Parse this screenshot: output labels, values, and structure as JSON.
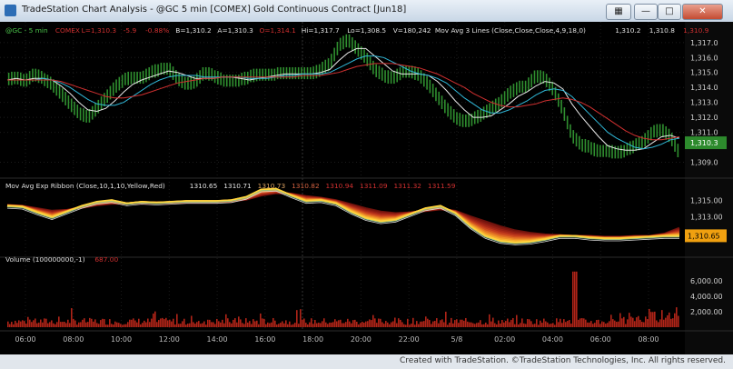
{
  "window": {
    "title": "TradeStation Chart Analysis - @GC 5 min [COMEX] Gold Continuous Contract [Jun18]",
    "close_label": "✕"
  },
  "footer": {
    "credit": "Created with TradeStation. ©TradeStation Technologies, Inc. All rights reserved."
  },
  "legends": {
    "price": [
      {
        "text": "@GC - 5 min",
        "color": "#4cc84c"
      },
      {
        "text": "COMEX",
        "color": "#d03030"
      },
      {
        "text": "L=1,310.3",
        "color": "#d03030"
      },
      {
        "text": "-5.9",
        "color": "#d03030"
      },
      {
        "text": "-0.88%",
        "color": "#d03030"
      },
      {
        "text": "B=1,310.2",
        "color": "#e0e0e0"
      },
      {
        "text": "A=1,310.3",
        "color": "#e0e0e0"
      },
      {
        "text": "O=1,314.1",
        "color": "#d03030"
      },
      {
        "text": "Hi=1,317.7",
        "color": "#e0e0e0"
      },
      {
        "text": "Lo=1,308.5",
        "color": "#e0e0e0"
      },
      {
        "text": "V=180,242",
        "color": "#e0e0e0"
      },
      {
        "text": "Mov Avg 3 Lines (Close,Close,Close,4,9,18,0)",
        "color": "#e0e0e0"
      },
      {
        "text": "1,310.2",
        "color": "#e0e0e0"
      },
      {
        "text": "1,310.8",
        "color": "#e0e0e0"
      },
      {
        "text": "1,310.9",
        "color": "#d03030"
      }
    ],
    "ribbon": [
      {
        "text": "Mov Avg Exp Ribbon (Close,10,1,10,Yellow,Red)",
        "color": "#e0e0e0"
      },
      {
        "text": "1310.65",
        "color": "#e0e0e0"
      },
      {
        "text": "1310.71",
        "color": "#e0e0e0"
      },
      {
        "text": "1310.73",
        "color": "#d8a060"
      },
      {
        "text": "1310.82",
        "color": "#d06040"
      },
      {
        "text": "1310.94",
        "color": "#d03030"
      },
      {
        "text": "1311.09",
        "color": "#d03030"
      },
      {
        "text": "1311.32",
        "color": "#d03030"
      },
      {
        "text": "1311.59",
        "color": "#d03030"
      }
    ],
    "volume": [
      {
        "text": "Volume (100000000,-1)",
        "color": "#e0e0e0"
      },
      {
        "text": "687.00",
        "color": "#d03030"
      }
    ]
  },
  "chart_data": {
    "type": "line",
    "symbol": "@GC",
    "interval": "5 min",
    "x_tick_labels": [
      "06:00",
      "08:00",
      "10:00",
      "12:00",
      "14:00",
      "16:00",
      "18:00",
      "20:00",
      "22:00",
      "5/8",
      "02:00",
      "04:00",
      "06:00",
      "08:00"
    ],
    "panels": [
      {
        "name": "price",
        "y_tick_labels": [
          "1,317.0",
          "1,316.0",
          "1,315.0",
          "1,314.0",
          "1,313.0",
          "1,312.0",
          "1,311.0",
          "1,309.0"
        ],
        "ylim": [
          1308.3,
          1317.9
        ],
        "last_price_label": "1,310.3",
        "x": [
          0,
          6,
          12,
          18,
          24,
          30,
          36,
          42,
          48,
          54,
          60,
          66,
          72,
          78,
          84,
          90,
          96,
          102,
          108,
          114,
          120,
          126,
          132,
          138,
          144,
          150,
          156,
          162,
          168,
          174,
          180,
          186,
          192,
          198,
          204,
          210,
          216,
          222,
          228,
          234,
          240,
          246,
          252,
          258,
          264,
          270,
          276,
          282,
          288,
          294,
          300,
          306,
          312,
          318,
          324,
          330,
          336,
          342,
          348,
          354,
          360,
          366,
          372,
          378,
          384,
          390,
          396,
          402,
          408,
          414,
          420,
          426,
          432,
          438,
          444,
          450
        ],
        "series": [
          {
            "name": "Close",
            "color": "#3fae3f",
            "values": [
              1314.5,
              1314.7,
              1314.4,
              1314.9,
              1314.6,
              1314.2,
              1313.6,
              1312.9,
              1312.3,
              1312.0,
              1312.6,
              1313.3,
              1314.0,
              1314.5,
              1314.7,
              1314.6,
              1315.0,
              1315.2,
              1315.3,
              1314.6,
              1314.2,
              1314.4,
              1315.0,
              1314.8,
              1314.5,
              1314.4,
              1314.5,
              1314.7,
              1314.9,
              1314.8,
              1314.9,
              1315.0,
              1314.9,
              1315.0,
              1314.9,
              1315.2,
              1315.6,
              1316.8,
              1317.2,
              1316.6,
              1316.0,
              1315.2,
              1314.8,
              1314.6,
              1315.0,
              1315.1,
              1314.8,
              1314.2,
              1313.4,
              1312.6,
              1312.0,
              1311.7,
              1311.9,
              1312.2,
              1312.6,
              1313.0,
              1313.6,
              1314.0,
              1314.1,
              1314.8,
              1314.6,
              1313.8,
              1312.5,
              1310.8,
              1310.2,
              1310.0,
              1309.7,
              1309.8,
              1309.6,
              1309.8,
              1310.1,
              1310.4,
              1311.0,
              1311.2,
              1310.7,
              1309.6
            ]
          },
          {
            "name": "MA 4",
            "color": "#e8e8e8",
            "values": [
              1314.5,
              1314.6,
              1314.5,
              1314.6,
              1314.6,
              1314.5,
              1314.1,
              1313.6,
              1313.0,
              1312.5,
              1312.4,
              1312.6,
              1313.1,
              1313.7,
              1314.2,
              1314.5,
              1314.7,
              1314.9,
              1315.1,
              1315.0,
              1314.8,
              1314.6,
              1314.6,
              1314.6,
              1314.7,
              1314.7,
              1314.6,
              1314.5,
              1314.6,
              1314.7,
              1314.8,
              1314.9,
              1314.9,
              1314.9,
              1314.9,
              1315.0,
              1315.2,
              1315.8,
              1316.3,
              1316.6,
              1316.6,
              1316.1,
              1315.6,
              1315.1,
              1314.9,
              1314.9,
              1314.9,
              1314.8,
              1314.4,
              1313.8,
              1313.1,
              1312.5,
              1312.0,
              1312.0,
              1312.1,
              1312.5,
              1312.9,
              1313.4,
              1313.7,
              1314.1,
              1314.4,
              1314.3,
              1313.9,
              1312.9,
              1312.1,
              1311.4,
              1310.7,
              1310.1,
              1309.9,
              1309.8,
              1309.8,
              1309.9,
              1310.3,
              1310.7,
              1310.8,
              1310.6
            ]
          },
          {
            "name": "MA 9",
            "color": "#30b8d8",
            "values": [
              1314.5,
              1314.5,
              1314.5,
              1314.5,
              1314.6,
              1314.5,
              1314.3,
              1314.0,
              1313.6,
              1313.2,
              1312.9,
              1312.8,
              1312.8,
              1313.0,
              1313.4,
              1313.8,
              1314.2,
              1314.5,
              1314.7,
              1314.8,
              1314.8,
              1314.8,
              1314.7,
              1314.7,
              1314.7,
              1314.7,
              1314.7,
              1314.6,
              1314.6,
              1314.6,
              1314.7,
              1314.8,
              1314.8,
              1314.9,
              1314.9,
              1314.9,
              1315.0,
              1315.3,
              1315.6,
              1315.9,
              1316.1,
              1316.1,
              1316.0,
              1315.7,
              1315.4,
              1315.1,
              1314.9,
              1314.8,
              1314.6,
              1314.3,
              1313.8,
              1313.3,
              1312.9,
              1312.5,
              1312.3,
              1312.3,
              1312.5,
              1312.8,
              1313.1,
              1313.5,
              1313.8,
              1313.9,
              1313.8,
              1313.4,
              1312.8,
              1312.2,
              1311.6,
              1311.0,
              1310.6,
              1310.3,
              1310.0,
              1309.9,
              1310.0,
              1310.2,
              1310.5,
              1310.6
            ]
          },
          {
            "name": "MA 18",
            "color": "#d03030",
            "values": [
              1314.5,
              1314.5,
              1314.5,
              1314.5,
              1314.5,
              1314.5,
              1314.4,
              1314.2,
              1314.0,
              1313.8,
              1313.6,
              1313.4,
              1313.3,
              1313.3,
              1313.4,
              1313.5,
              1313.7,
              1313.9,
              1314.1,
              1314.3,
              1314.4,
              1314.5,
              1314.6,
              1314.6,
              1314.7,
              1314.7,
              1314.7,
              1314.7,
              1314.7,
              1314.7,
              1314.7,
              1314.7,
              1314.7,
              1314.8,
              1314.8,
              1314.8,
              1314.9,
              1315.0,
              1315.2,
              1315.4,
              1315.5,
              1315.6,
              1315.6,
              1315.6,
              1315.5,
              1315.4,
              1315.3,
              1315.1,
              1314.9,
              1314.6,
              1314.3,
              1314.0,
              1313.6,
              1313.3,
              1313.0,
              1312.8,
              1312.7,
              1312.7,
              1312.8,
              1312.9,
              1313.1,
              1313.2,
              1313.3,
              1313.2,
              1313.0,
              1312.7,
              1312.3,
              1311.9,
              1311.5,
              1311.1,
              1310.8,
              1310.6,
              1310.5,
              1310.5,
              1310.6,
              1310.7
            ]
          }
        ]
      },
      {
        "name": "ribbon",
        "y_tick_labels": [
          "1,315.00",
          "1,313.00"
        ],
        "ylim": [
          1308.8,
          1316.6
        ],
        "last_value_label": "1,310.65",
        "x": [
          0,
          10,
          20,
          30,
          40,
          50,
          60,
          70,
          80,
          90,
          100,
          110,
          120,
          130,
          140,
          150,
          160,
          170,
          180,
          190,
          200,
          210,
          220,
          230,
          240,
          250,
          260,
          270,
          280,
          290,
          300,
          310,
          320,
          330,
          340,
          350,
          360,
          370,
          380,
          390,
          400,
          410,
          420,
          430,
          440,
          450
        ],
        "fast_ema": [
          1314.3,
          1314.2,
          1313.5,
          1312.9,
          1313.6,
          1314.3,
          1314.8,
          1315.0,
          1314.6,
          1314.8,
          1314.7,
          1314.8,
          1314.9,
          1314.9,
          1314.9,
          1315.0,
          1315.4,
          1316.3,
          1316.4,
          1315.6,
          1314.9,
          1315.0,
          1314.6,
          1313.6,
          1312.8,
          1312.4,
          1312.6,
          1313.3,
          1314.0,
          1314.3,
          1313.4,
          1311.8,
          1310.6,
          1310.0,
          1309.8,
          1309.9,
          1310.2,
          1310.6,
          1310.6,
          1310.4,
          1310.3,
          1310.3,
          1310.4,
          1310.5,
          1310.6,
          1310.6
        ],
        "slow_ema": [
          1314.4,
          1314.3,
          1314.0,
          1313.7,
          1313.8,
          1314.1,
          1314.4,
          1314.6,
          1314.6,
          1314.7,
          1314.7,
          1314.7,
          1314.8,
          1314.8,
          1314.8,
          1314.9,
          1315.1,
          1315.6,
          1315.9,
          1315.8,
          1315.5,
          1315.3,
          1315.0,
          1314.5,
          1314.0,
          1313.6,
          1313.4,
          1313.5,
          1313.7,
          1313.9,
          1313.7,
          1313.0,
          1312.4,
          1311.8,
          1311.3,
          1311.0,
          1310.8,
          1310.7,
          1310.6,
          1310.6,
          1310.5,
          1310.5,
          1310.6,
          1310.6,
          1310.9,
          1311.6
        ]
      },
      {
        "name": "volume",
        "y_tick_labels": [
          "6,000.00",
          "4,000.00",
          "2,000.00"
        ],
        "ylim": [
          0,
          8000
        ],
        "last_value_label": "687.00"
      }
    ]
  }
}
